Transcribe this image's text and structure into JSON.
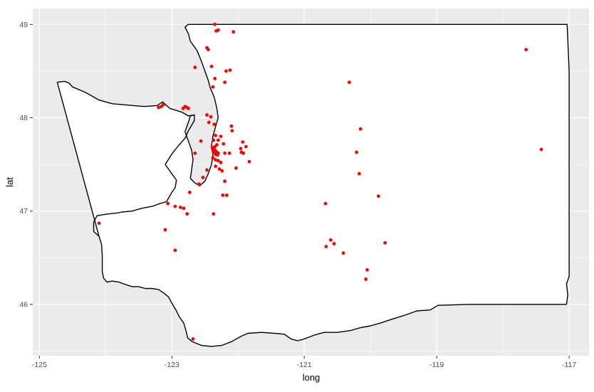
{
  "chart_data": {
    "type": "scatter",
    "xlabel": "long",
    "ylabel": "lat",
    "xlim": [
      -125.1,
      -116.7
    ],
    "ylim": [
      45.45,
      49.17
    ],
    "x_ticks": [
      -125,
      -123,
      -121,
      -119,
      -117
    ],
    "x_tick_labels": [
      "-125",
      "-123",
      "-121",
      "-119",
      "-117"
    ],
    "y_ticks": [
      46,
      47,
      48,
      49
    ],
    "y_tick_labels": [
      "46",
      "47",
      "48",
      "49"
    ],
    "grid": true,
    "legend": "none",
    "colors": {
      "panel_background": "#ebebeb",
      "grid_major": "#ffffff",
      "map_fill": "#ffffff",
      "map_outline": "#000000",
      "points": "#ff0000"
    },
    "state_outline": [
      [
        -124.73,
        48.38
      ],
      [
        -124.62,
        48.39
      ],
      [
        -124.55,
        48.37
      ],
      [
        -124.5,
        48.33
      ],
      [
        -124.3,
        48.27
      ],
      [
        -124.1,
        48.19
      ],
      [
        -123.9,
        48.15
      ],
      [
        -123.58,
        48.13
      ],
      [
        -123.42,
        48.12
      ],
      [
        -123.22,
        48.13
      ],
      [
        -123.14,
        48.17
      ],
      [
        -123.03,
        48.1
      ],
      [
        -122.85,
        48.06
      ],
      [
        -122.75,
        48.02
      ],
      [
        -122.66,
        48.03
      ],
      [
        -122.66,
        47.97
      ],
      [
        -122.7,
        47.92
      ],
      [
        -122.75,
        47.86
      ],
      [
        -122.8,
        47.78
      ],
      [
        -122.9,
        47.7
      ],
      [
        -123.0,
        47.61
      ],
      [
        -123.1,
        47.5
      ],
      [
        -123.0,
        47.4
      ],
      [
        -122.93,
        47.33
      ],
      [
        -122.95,
        47.25
      ],
      [
        -123.0,
        47.2
      ],
      [
        -123.08,
        47.1
      ],
      [
        -123.18,
        47.08
      ],
      [
        -123.3,
        47.05
      ],
      [
        -123.45,
        47.03
      ],
      [
        -123.6,
        47.0
      ],
      [
        -123.75,
        46.99
      ],
      [
        -123.82,
        46.98
      ],
      [
        -123.95,
        46.97
      ],
      [
        -124.05,
        46.96
      ],
      [
        -124.13,
        46.95
      ],
      [
        -124.18,
        46.88
      ],
      [
        -124.18,
        46.78
      ],
      [
        -124.1,
        46.73
      ],
      [
        -124.06,
        46.64
      ],
      [
        -124.05,
        46.52
      ],
      [
        -124.05,
        46.35
      ],
      [
        -124.03,
        46.28
      ],
      [
        -123.98,
        46.24
      ],
      [
        -123.9,
        46.25
      ],
      [
        -123.8,
        46.24
      ],
      [
        -123.73,
        46.22
      ],
      [
        -123.6,
        46.19
      ],
      [
        -123.5,
        46.19
      ],
      [
        -123.4,
        46.17
      ],
      [
        -123.3,
        46.17
      ],
      [
        -123.2,
        46.16
      ],
      [
        -123.12,
        46.12
      ],
      [
        -123.05,
        46.08
      ],
      [
        -122.99,
        46.0
      ],
      [
        -122.93,
        45.93
      ],
      [
        -122.89,
        45.87
      ],
      [
        -122.82,
        45.8
      ],
      [
        -122.78,
        45.7
      ],
      [
        -122.76,
        45.64
      ],
      [
        -122.69,
        45.6
      ],
      [
        -122.55,
        45.56
      ],
      [
        -122.4,
        45.55
      ],
      [
        -122.25,
        45.56
      ],
      [
        -122.1,
        45.6
      ],
      [
        -121.95,
        45.66
      ],
      [
        -121.85,
        45.69
      ],
      [
        -121.65,
        45.7
      ],
      [
        -121.45,
        45.69
      ],
      [
        -121.3,
        45.68
      ],
      [
        -121.2,
        45.63
      ],
      [
        -121.1,
        45.61
      ],
      [
        -121.0,
        45.63
      ],
      [
        -120.85,
        45.67
      ],
      [
        -120.7,
        45.7
      ],
      [
        -120.5,
        45.7
      ],
      [
        -120.3,
        45.72
      ],
      [
        -120.15,
        45.75
      ],
      [
        -120.0,
        45.77
      ],
      [
        -119.85,
        45.8
      ],
      [
        -119.68,
        45.84
      ],
      [
        -119.5,
        45.88
      ],
      [
        -119.3,
        45.93
      ],
      [
        -119.1,
        45.94
      ],
      [
        -118.98,
        45.99
      ],
      [
        -118.5,
        46.0
      ],
      [
        -118.0,
        46.0
      ],
      [
        -117.6,
        46.0
      ],
      [
        -117.3,
        46.0
      ],
      [
        -117.04,
        46.0
      ],
      [
        -117.02,
        46.1
      ],
      [
        -117.04,
        46.22
      ],
      [
        -117.0,
        46.3
      ],
      [
        -117.0,
        46.6
      ],
      [
        -117.0,
        47.0
      ],
      [
        -117.0,
        47.5
      ],
      [
        -117.0,
        48.0
      ],
      [
        -117.0,
        48.5
      ],
      [
        -117.03,
        49.0
      ],
      [
        -118.0,
        49.0
      ],
      [
        -119.0,
        49.0
      ],
      [
        -120.0,
        49.0
      ],
      [
        -121.0,
        49.0
      ],
      [
        -122.0,
        49.0
      ],
      [
        -122.75,
        49.0
      ],
      [
        -122.8,
        48.97
      ],
      [
        -122.75,
        48.9
      ],
      [
        -122.72,
        48.82
      ],
      [
        -122.62,
        48.72
      ],
      [
        -122.55,
        48.6
      ],
      [
        -122.5,
        48.5
      ],
      [
        -122.45,
        48.4
      ],
      [
        -122.42,
        48.32
      ],
      [
        -122.36,
        48.22
      ],
      [
        -122.32,
        48.1
      ],
      [
        -122.3,
        48.0
      ],
      [
        -122.34,
        47.9
      ],
      [
        -122.38,
        47.8
      ],
      [
        -122.4,
        47.7
      ],
      [
        -122.38,
        47.6
      ],
      [
        -122.4,
        47.5
      ],
      [
        -122.45,
        47.4
      ],
      [
        -122.5,
        47.32
      ],
      [
        -122.58,
        47.27
      ],
      [
        -122.65,
        47.3
      ],
      [
        -122.72,
        47.35
      ],
      [
        -122.7,
        47.45
      ],
      [
        -122.68,
        47.55
      ],
      [
        -122.7,
        47.65
      ],
      [
        -122.75,
        47.75
      ],
      [
        -122.8,
        47.85
      ],
      [
        -122.75,
        47.95
      ],
      [
        -122.72,
        48.02
      ],
      [
        -122.66,
        48.03
      ],
      [
        -122.66,
        47.97
      ],
      [
        -122.7,
        47.92
      ],
      [
        -122.75,
        47.86
      ],
      [
        -122.8,
        47.78
      ],
      [
        -122.9,
        47.7
      ],
      [
        -123.0,
        47.61
      ],
      [
        -123.1,
        47.5
      ],
      [
        -123.0,
        47.4
      ],
      [
        -122.93,
        47.33
      ],
      [
        -122.95,
        47.25
      ],
      [
        -123.0,
        47.2
      ],
      [
        -123.08,
        47.1
      ],
      [
        -123.18,
        47.08
      ],
      [
        -123.3,
        47.05
      ],
      [
        -123.45,
        47.03
      ],
      [
        -123.6,
        47.0
      ],
      [
        -123.75,
        46.99
      ],
      [
        -123.82,
        46.98
      ],
      [
        -123.95,
        46.97
      ],
      [
        -124.05,
        46.96
      ],
      [
        -124.13,
        46.95
      ],
      [
        -124.18,
        46.88
      ],
      [
        -124.18,
        46.78
      ],
      [
        -124.1,
        46.73
      ]
    ],
    "points": [
      {
        "x": -122.35,
        "y": 49.0
      },
      {
        "x": -122.3,
        "y": 48.94
      },
      {
        "x": -122.33,
        "y": 48.93
      },
      {
        "x": -122.07,
        "y": 48.92
      },
      {
        "x": -122.47,
        "y": 48.75
      },
      {
        "x": -122.45,
        "y": 48.73
      },
      {
        "x": -122.65,
        "y": 48.54
      },
      {
        "x": -122.4,
        "y": 48.55
      },
      {
        "x": -122.18,
        "y": 48.5
      },
      {
        "x": -122.12,
        "y": 48.51
      },
      {
        "x": -122.35,
        "y": 48.42
      },
      {
        "x": -122.2,
        "y": 48.38
      },
      {
        "x": -122.38,
        "y": 48.33
      },
      {
        "x": -123.13,
        "y": 48.14
      },
      {
        "x": -123.16,
        "y": 48.12
      },
      {
        "x": -123.2,
        "y": 48.11
      },
      {
        "x": -122.8,
        "y": 48.12
      },
      {
        "x": -122.77,
        "y": 48.11
      },
      {
        "x": -122.75,
        "y": 48.1
      },
      {
        "x": -122.83,
        "y": 48.1
      },
      {
        "x": -122.47,
        "y": 48.03
      },
      {
        "x": -122.41,
        "y": 48.01
      },
      {
        "x": -122.44,
        "y": 47.95
      },
      {
        "x": -122.36,
        "y": 47.93
      },
      {
        "x": -122.1,
        "y": 47.91
      },
      {
        "x": -122.09,
        "y": 47.86
      },
      {
        "x": -122.34,
        "y": 47.81
      },
      {
        "x": -122.26,
        "y": 47.8
      },
      {
        "x": -122.3,
        "y": 47.76
      },
      {
        "x": -122.37,
        "y": 47.76
      },
      {
        "x": -122.56,
        "y": 47.75
      },
      {
        "x": -122.22,
        "y": 47.72
      },
      {
        "x": -121.93,
        "y": 47.74
      },
      {
        "x": -121.88,
        "y": 47.69
      },
      {
        "x": -121.96,
        "y": 47.67
      },
      {
        "x": -122.32,
        "y": 47.71
      },
      {
        "x": -122.35,
        "y": 47.69
      },
      {
        "x": -122.39,
        "y": 47.68
      },
      {
        "x": -122.36,
        "y": 47.66
      },
      {
        "x": -122.33,
        "y": 47.64
      },
      {
        "x": -122.37,
        "y": 47.63
      },
      {
        "x": -122.34,
        "y": 47.61
      },
      {
        "x": -122.3,
        "y": 47.62
      },
      {
        "x": -122.31,
        "y": 47.6
      },
      {
        "x": -122.2,
        "y": 47.62
      },
      {
        "x": -122.13,
        "y": 47.62
      },
      {
        "x": -121.95,
        "y": 47.63
      },
      {
        "x": -121.92,
        "y": 47.62
      },
      {
        "x": -122.65,
        "y": 47.62
      },
      {
        "x": -122.38,
        "y": 47.57
      },
      {
        "x": -122.34,
        "y": 47.55
      },
      {
        "x": -122.3,
        "y": 47.54
      },
      {
        "x": -122.26,
        "y": 47.52
      },
      {
        "x": -121.83,
        "y": 47.53
      },
      {
        "x": -122.34,
        "y": 47.48
      },
      {
        "x": -122.28,
        "y": 47.45
      },
      {
        "x": -122.24,
        "y": 47.43
      },
      {
        "x": -122.03,
        "y": 47.46
      },
      {
        "x": -122.47,
        "y": 47.44
      },
      {
        "x": -122.53,
        "y": 47.36
      },
      {
        "x": -122.2,
        "y": 47.32
      },
      {
        "x": -122.59,
        "y": 47.29
      },
      {
        "x": -122.73,
        "y": 47.2
      },
      {
        "x": -122.23,
        "y": 47.17
      },
      {
        "x": -122.17,
        "y": 47.17
      },
      {
        "x": -123.06,
        "y": 47.08
      },
      {
        "x": -122.95,
        "y": 47.05
      },
      {
        "x": -122.87,
        "y": 47.04
      },
      {
        "x": -122.82,
        "y": 47.03
      },
      {
        "x": -122.77,
        "y": 46.97
      },
      {
        "x": -122.37,
        "y": 46.97
      },
      {
        "x": -124.1,
        "y": 46.87
      },
      {
        "x": -123.1,
        "y": 46.8
      },
      {
        "x": -122.95,
        "y": 46.58
      },
      {
        "x": -122.68,
        "y": 45.63
      },
      {
        "x": -120.32,
        "y": 48.38
      },
      {
        "x": -120.15,
        "y": 47.88
      },
      {
        "x": -120.21,
        "y": 47.63
      },
      {
        "x": -120.17,
        "y": 47.4
      },
      {
        "x": -119.88,
        "y": 47.16
      },
      {
        "x": -120.68,
        "y": 47.08
      },
      {
        "x": -120.6,
        "y": 46.69
      },
      {
        "x": -120.55,
        "y": 46.65
      },
      {
        "x": -120.67,
        "y": 46.62
      },
      {
        "x": -120.41,
        "y": 46.55
      },
      {
        "x": -119.78,
        "y": 46.66
      },
      {
        "x": -120.05,
        "y": 46.37
      },
      {
        "x": -120.07,
        "y": 46.27
      },
      {
        "x": -117.65,
        "y": 48.73
      },
      {
        "x": -117.42,
        "y": 47.66
      }
    ]
  }
}
